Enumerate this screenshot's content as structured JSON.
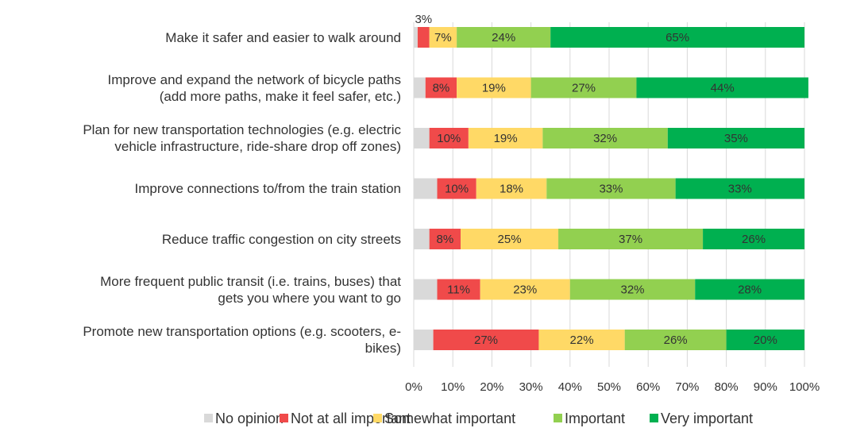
{
  "chart_data": {
    "type": "stacked-bar-horizontal",
    "categories": [
      "Make it safer and easier to walk around",
      "Improve and expand the network of bicycle paths\n(add more paths, make it feel safer, etc.)",
      "Plan for new transportation technologies (e.g. electric\nvehicle infrastructure, ride-share drop off zones)",
      "Improve connections to/from the train station",
      "Reduce traffic congestion on city streets",
      "More frequent public transit (i.e. trains, buses) that\ngets you where you want to go",
      "Promote new transportation options (e.g. scooters, e-\nbikes)"
    ],
    "series": [
      {
        "name": "No opinion",
        "color": "#d9d9d9",
        "values": [
          1,
          3,
          4,
          6,
          4,
          6,
          5
        ]
      },
      {
        "name": "Not at all important",
        "color": "#f04a4a",
        "values": [
          3,
          8,
          10,
          10,
          8,
          11,
          27
        ],
        "value_labels": [
          "3%",
          "8%",
          "10%",
          "10%",
          "8%",
          "11%",
          "27%"
        ]
      },
      {
        "name": "Somewhat important",
        "color": "#ffd966",
        "values": [
          7,
          19,
          19,
          18,
          25,
          23,
          22
        ],
        "value_labels": [
          "7%",
          "19%",
          "19%",
          "18%",
          "25%",
          "23%",
          "22%"
        ]
      },
      {
        "name": "Important",
        "color": "#92d050",
        "values": [
          24,
          27,
          32,
          33,
          37,
          32,
          26
        ],
        "value_labels": [
          "24%",
          "27%",
          "32%",
          "33%",
          "37%",
          "32%",
          "26%"
        ]
      },
      {
        "name": "Very important",
        "color": "#00b050",
        "values": [
          65,
          44,
          35,
          33,
          26,
          28,
          20
        ],
        "value_labels": [
          "65%",
          "44%",
          "35%",
          "33%",
          "26%",
          "28%",
          "20%"
        ]
      }
    ],
    "xlim": [
      0,
      100
    ],
    "xticks": [
      {
        "value": 0,
        "label": "0%"
      },
      {
        "value": 10,
        "label": "10%"
      },
      {
        "value": 20,
        "label": "20%"
      },
      {
        "value": 30,
        "label": "30%"
      },
      {
        "value": 40,
        "label": "40%"
      },
      {
        "value": 50,
        "label": "50%"
      },
      {
        "value": 60,
        "label": "60%"
      },
      {
        "value": 70,
        "label": "70%"
      },
      {
        "value": 80,
        "label": "80%"
      },
      {
        "value": 90,
        "label": "90%"
      },
      {
        "value": 100,
        "label": "100%"
      }
    ],
    "grid": true,
    "legend": "bottom"
  }
}
